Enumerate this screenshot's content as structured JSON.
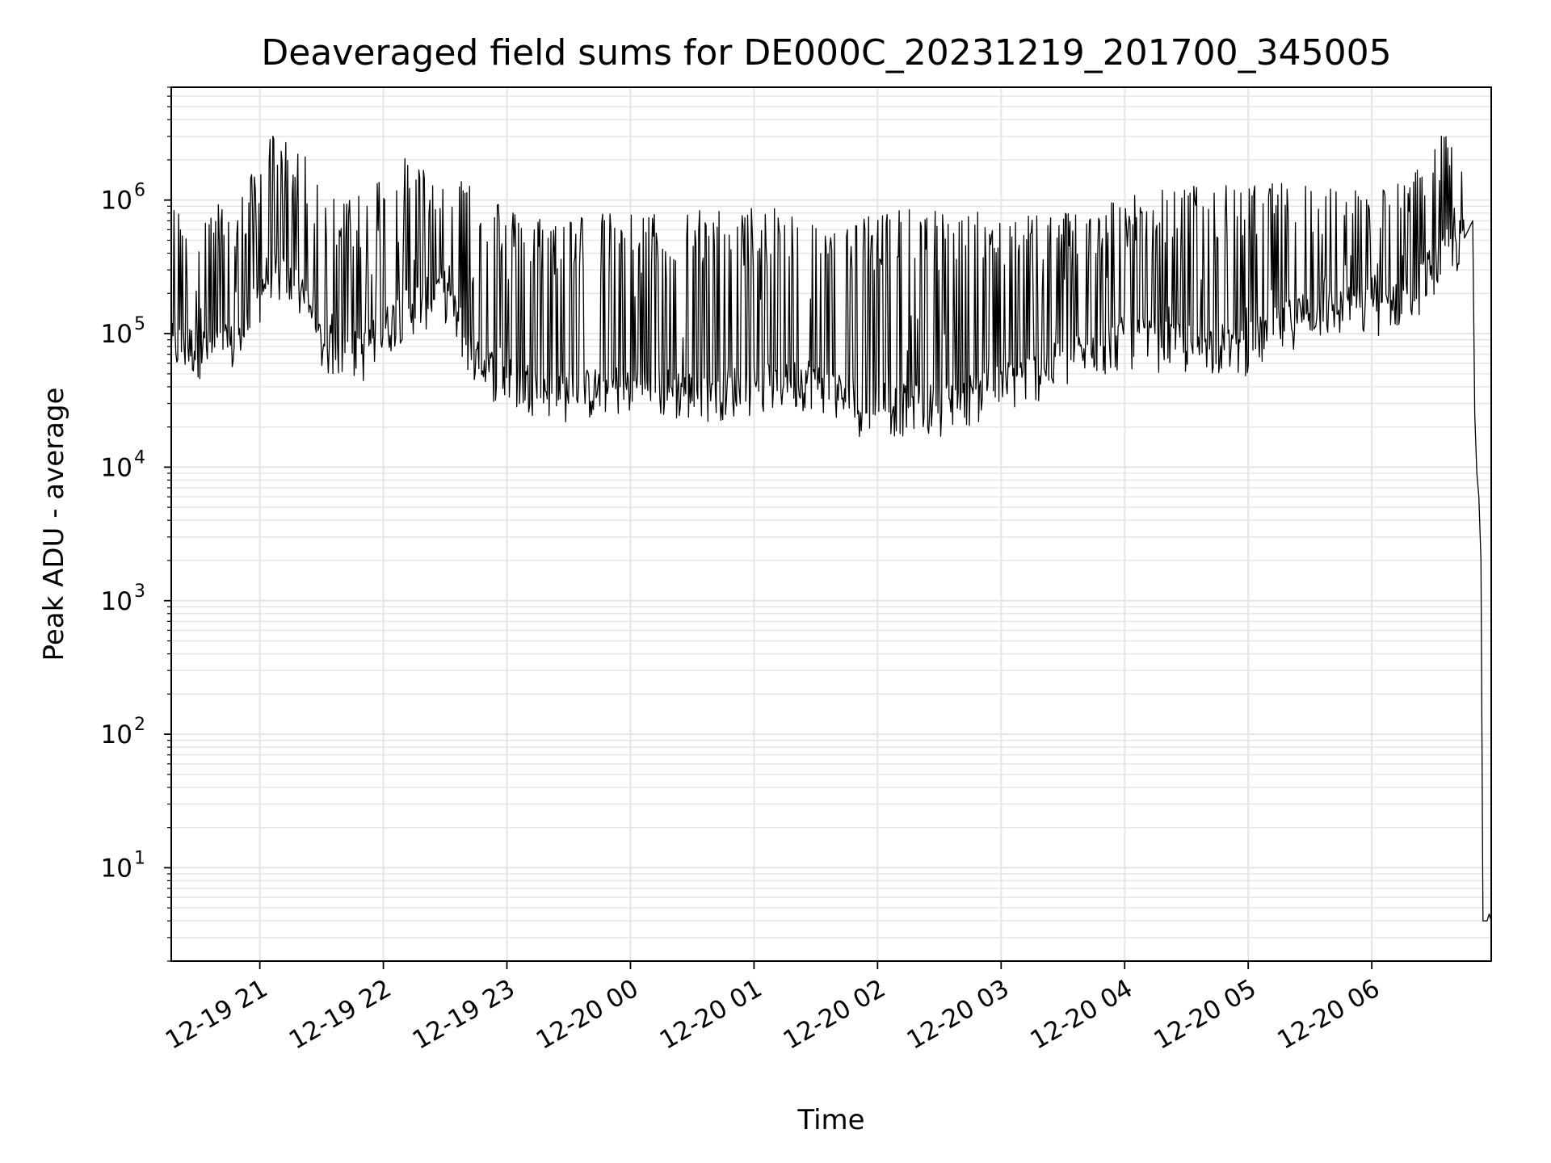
{
  "chart_data": {
    "type": "line",
    "title": "Deaveraged field sums for DE000C_20231219_201700_345005",
    "xlabel": "Time",
    "ylabel": "Peak ADU - average",
    "yscale": "log",
    "ylim": [
      2,
      7000000
    ],
    "xlim": [
      "2023-12-19 20:17",
      "2023-12-20 06:58"
    ],
    "grid": true,
    "legend": "none",
    "line_color": "#000000",
    "grid_color": "#e5e5e5",
    "x_ticks": [
      {
        "value": "2023-12-19 21:00",
        "label": "12-19 21"
      },
      {
        "value": "2023-12-19 22:00",
        "label": "12-19 22"
      },
      {
        "value": "2023-12-19 23:00",
        "label": "12-19 23"
      },
      {
        "value": "2023-12-20 00:00",
        "label": "12-20 00"
      },
      {
        "value": "2023-12-20 01:00",
        "label": "12-20 01"
      },
      {
        "value": "2023-12-20 02:00",
        "label": "12-20 02"
      },
      {
        "value": "2023-12-20 03:00",
        "label": "12-20 03"
      },
      {
        "value": "2023-12-20 04:00",
        "label": "12-20 04"
      },
      {
        "value": "2023-12-20 05:00",
        "label": "12-20 05"
      },
      {
        "value": "2023-12-20 06:00",
        "label": "12-20 06"
      }
    ],
    "y_ticks": [
      {
        "value": 10,
        "label": "10",
        "exp": "1"
      },
      {
        "value": 100,
        "label": "10",
        "exp": "2"
      },
      {
        "value": 1000,
        "label": "10",
        "exp": "3"
      },
      {
        "value": 10000,
        "label": "10",
        "exp": "4"
      },
      {
        "value": 100000,
        "label": "10",
        "exp": "5"
      },
      {
        "value": 1000000,
        "label": "10",
        "exp": "6"
      }
    ],
    "series": [
      {
        "envelope": [
          {
            "t": "2023-12-19 20:17",
            "base": 80000,
            "peak": 900000
          },
          {
            "t": "2023-12-19 20:35",
            "base": 75000,
            "peak": 950000
          },
          {
            "t": "2023-12-19 20:50",
            "base": 80000,
            "peak": 1000000
          },
          {
            "t": "2023-12-19 21:05",
            "base": 300000,
            "peak": 3300000
          },
          {
            "t": "2023-12-19 21:20",
            "base": 200000,
            "peak": 2500000
          },
          {
            "t": "2023-12-19 21:30",
            "base": 80000,
            "peak": 1100000
          },
          {
            "t": "2023-12-19 21:50",
            "base": 70000,
            "peak": 1200000
          },
          {
            "t": "2023-12-19 22:10",
            "base": 150000,
            "peak": 2200000
          },
          {
            "t": "2023-12-19 22:30",
            "base": 200000,
            "peak": 1500000
          },
          {
            "t": "2023-12-19 22:45",
            "base": 60000,
            "peak": 1700000
          },
          {
            "t": "2023-12-19 23:00",
            "base": 45000,
            "peak": 850000
          },
          {
            "t": "2023-12-19 23:30",
            "base": 35000,
            "peak": 800000
          },
          {
            "t": "2023-12-20 00:00",
            "base": 40000,
            "peak": 800000
          },
          {
            "t": "2023-12-20 00:30",
            "base": 35000,
            "peak": 850000
          },
          {
            "t": "2023-12-20 01:00",
            "base": 40000,
            "peak": 900000
          },
          {
            "t": "2023-12-20 01:30",
            "base": 45000,
            "peak": 800000
          },
          {
            "t": "2023-12-20 01:50",
            "base": 28000,
            "peak": 850000
          },
          {
            "t": "2023-12-20 02:30",
            "base": 28000,
            "peak": 850000
          },
          {
            "t": "2023-12-20 03:00",
            "base": 40000,
            "peak": 800000
          },
          {
            "t": "2023-12-20 03:30",
            "base": 60000,
            "peak": 850000
          },
          {
            "t": "2023-12-20 04:00",
            "base": 90000,
            "peak": 1100000
          },
          {
            "t": "2023-12-20 04:30",
            "base": 80000,
            "peak": 1300000
          },
          {
            "t": "2023-12-20 05:00",
            "base": 80000,
            "peak": 1300000
          },
          {
            "t": "2023-12-20 05:30",
            "base": 150000,
            "peak": 1400000
          },
          {
            "t": "2023-12-20 06:00",
            "base": 150000,
            "peak": 1200000
          },
          {
            "t": "2023-12-20 06:20",
            "base": 200000,
            "peak": 1600000
          },
          {
            "t": "2023-12-20 06:35",
            "base": 400000,
            "peak": 3200000
          },
          {
            "t": "2023-12-20 06:45",
            "base": 500000,
            "peak": 2000000
          }
        ],
        "tail": [
          {
            "t": "2023-12-20 06:49",
            "y": 700000
          },
          {
            "t": "2023-12-20 06:50",
            "y": 25000
          },
          {
            "t": "2023-12-20 06:51",
            "y": 9000
          },
          {
            "t": "2023-12-20 06:52",
            "y": 6000
          },
          {
            "t": "2023-12-20 06:53",
            "y": 2000
          },
          {
            "t": "2023-12-20 06:54",
            "y": 4
          },
          {
            "t": "2023-12-20 06:56",
            "y": 4
          },
          {
            "t": "2023-12-20 06:57",
            "y": 4.5
          },
          {
            "t": "2023-12-20 06:58",
            "y": 4
          }
        ]
      }
    ]
  }
}
